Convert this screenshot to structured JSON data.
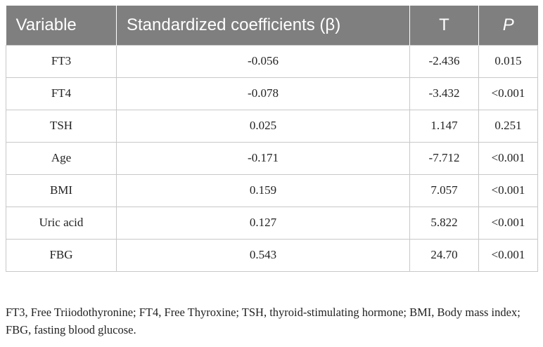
{
  "table": {
    "headers": [
      {
        "label": "Variable",
        "italic": false
      },
      {
        "label": "Standardized coefficients (β)",
        "italic": false
      },
      {
        "label": "T",
        "italic": false
      },
      {
        "label": "P",
        "italic": true
      }
    ],
    "rows": [
      {
        "variable": "FT3",
        "beta": "-0.056",
        "t": "-2.436",
        "p": "0.015"
      },
      {
        "variable": "FT4",
        "beta": "-0.078",
        "t": "-3.432",
        "p": "<0.001"
      },
      {
        "variable": "TSH",
        "beta": "0.025",
        "t": "1.147",
        "p": "0.251"
      },
      {
        "variable": "Age",
        "beta": "-0.171",
        "t": "-7.712",
        "p": "<0.001"
      },
      {
        "variable": "BMI",
        "beta": "0.159",
        "t": "7.057",
        "p": "<0.001"
      },
      {
        "variable": "Uric acid",
        "beta": "0.127",
        "t": "5.822",
        "p": "<0.001"
      },
      {
        "variable": "FBG",
        "beta": "0.543",
        "t": "24.70",
        "p": "<0.001"
      }
    ],
    "header_bg": "#7f7f7f",
    "header_text_color": "#ffffff",
    "border_color": "#c8c8c8"
  },
  "footnote": "FT3, Free Triiodothyronine; FT4, Free Thyroxine; TSH, thyroid-stimulating hormone; BMI, Body mass index; FBG, fasting blood glucose."
}
